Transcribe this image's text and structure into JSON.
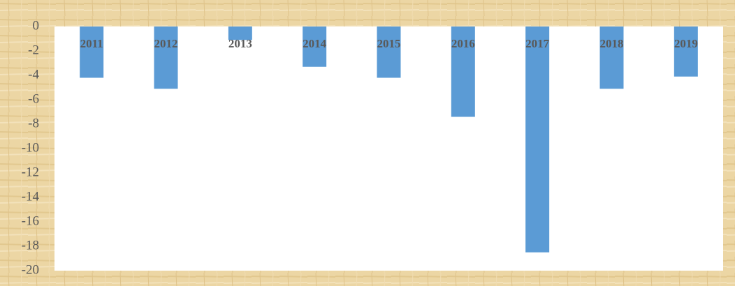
{
  "chart_data": {
    "type": "bar",
    "categories": [
      "2011",
      "2012",
      "2013",
      "2014",
      "2015",
      "2016",
      "2017",
      "2018",
      "2019"
    ],
    "values": [
      -4.2,
      -5.1,
      -1.1,
      -3.3,
      -4.2,
      -7.4,
      -18.5,
      -5.1,
      -4.1
    ],
    "color": "#5b9bd5",
    "ylim": [
      -20,
      0
    ],
    "yticks": [
      0,
      -2,
      -4,
      -6,
      -8,
      -10,
      -12,
      -14,
      -16,
      -18,
      -20
    ],
    "grid": false
  }
}
